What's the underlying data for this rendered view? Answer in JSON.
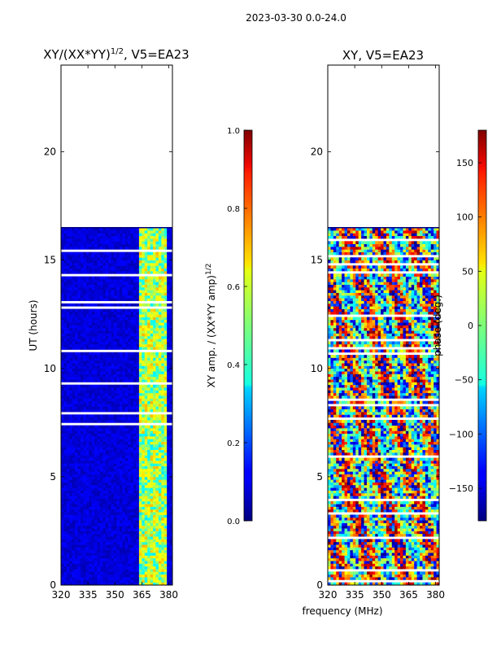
{
  "suptitle": "2023-03-30 0.0-24.0",
  "chart_data": [
    {
      "type": "heatmap",
      "title_main": "XY/(XX*YY)",
      "title_sup": "1/2",
      "title_suffix": ", V5=EA23",
      "xlabel": "",
      "ylabel": "UT (hours)",
      "xlim": [
        320,
        382
      ],
      "ylim": [
        0,
        24
      ],
      "xticks": [
        320,
        335,
        350,
        365,
        380
      ],
      "yticks": [
        0,
        5,
        10,
        15,
        20
      ],
      "data_extent_hours": [
        0,
        16.5
      ],
      "colorbar": {
        "label_main": "XY amp. / (XX*YY amp)",
        "label_sup": "1/2",
        "range": [
          0.0,
          1.0
        ],
        "ticks": [
          "0.0",
          "0.2",
          "0.4",
          "0.6",
          "0.8",
          "1.0"
        ]
      }
    },
    {
      "type": "heatmap",
      "title": "XY, V5=EA23",
      "xlabel": "frequency (MHz)",
      "ylabel": "",
      "xlim": [
        320,
        382
      ],
      "ylim": [
        0,
        24
      ],
      "xticks": [
        320,
        335,
        350,
        365,
        380
      ],
      "yticks": [
        0,
        5,
        10,
        15,
        20
      ],
      "data_extent_hours": [
        0,
        16.5
      ],
      "colorbar": {
        "label": "phase (deg.)",
        "range": [
          -180,
          180
        ],
        "ticks": [
          "150",
          "100",
          "50",
          "0",
          "−50",
          "−100",
          "−150"
        ]
      }
    }
  ]
}
